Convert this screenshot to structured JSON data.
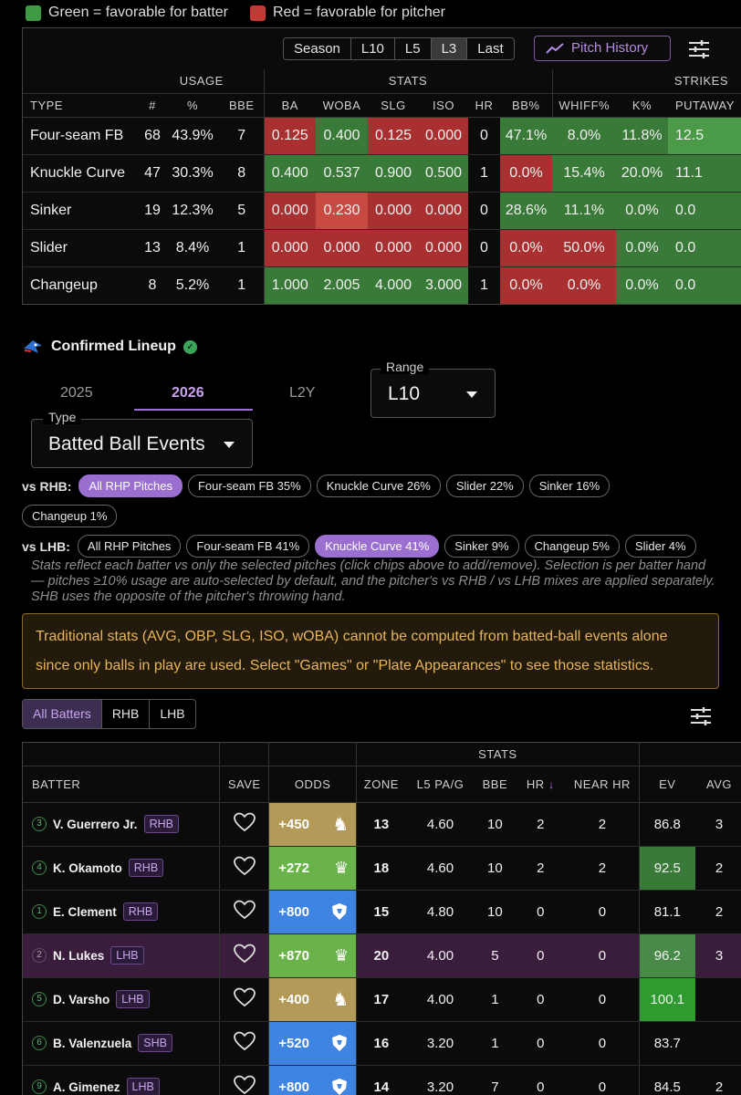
{
  "legend": {
    "green": {
      "label": "Green = favorable for batter",
      "color": "#3f9a45"
    },
    "red": {
      "label": "Red = favorable for pitcher",
      "color": "#c23a36"
    }
  },
  "pitch_panel": {
    "ranges": [
      "Season",
      "L10",
      "L5",
      "L3",
      "Last"
    ],
    "active_range": "L3",
    "pitch_history_label": "Pitch History",
    "group_headers": {
      "usage": "USAGE",
      "stats": "STATS",
      "strikes": "STRIKES"
    },
    "columns": [
      "TYPE",
      "#",
      "%",
      "BBE",
      "BA",
      "WOBA",
      "SLG",
      "ISO",
      "HR",
      "BB%",
      "WHIFF%",
      "K%",
      "PUTAWAY"
    ],
    "rows": [
      {
        "type": "Four-seam FB",
        "count": "68",
        "pct": "43.9%",
        "bbe": "7",
        "ba": "0.125",
        "woba": "0.400",
        "slg": "0.125",
        "iso": "0.000",
        "hr": "0",
        "bb": "47.1%",
        "whiff": "8.0%",
        "k": "11.8%",
        "putaway": "12.5"
      },
      {
        "type": "Knuckle Curve",
        "count": "47",
        "pct": "30.3%",
        "bbe": "8",
        "ba": "0.400",
        "woba": "0.537",
        "slg": "0.900",
        "iso": "0.500",
        "hr": "1",
        "bb": "0.0%",
        "whiff": "15.4%",
        "k": "20.0%",
        "putaway": "11.1"
      },
      {
        "type": "Sinker",
        "count": "19",
        "pct": "12.3%",
        "bbe": "5",
        "ba": "0.000",
        "woba": "0.230",
        "slg": "0.000",
        "iso": "0.000",
        "hr": "0",
        "bb": "28.6%",
        "whiff": "11.1%",
        "k": "0.0%",
        "putaway": "0.0"
      },
      {
        "type": "Slider",
        "count": "13",
        "pct": "8.4%",
        "bbe": "1",
        "ba": "0.000",
        "woba": "0.000",
        "slg": "0.000",
        "iso": "0.000",
        "hr": "0",
        "bb": "0.0%",
        "whiff": "50.0%",
        "k": "0.0%",
        "putaway": "0.0"
      },
      {
        "type": "Changeup",
        "count": "8",
        "pct": "5.2%",
        "bbe": "1",
        "ba": "1.000",
        "woba": "2.005",
        "slg": "4.000",
        "iso": "3.000",
        "hr": "1",
        "bb": "0.0%",
        "whiff": "0.0%",
        "k": "0.0%",
        "putaway": "0.0"
      }
    ]
  },
  "lineup": {
    "title": "Confirmed Lineup",
    "years": [
      "2025",
      "2026",
      "L2Y"
    ],
    "active_year": "2026",
    "range": {
      "label": "Range",
      "value": "L10"
    },
    "type": {
      "label": "Type",
      "value": "Batted Ball Events"
    },
    "vs_rhb": {
      "label": "vs RHB:",
      "chips": [
        "All RHP Pitches",
        "Four-seam FB 35%",
        "Knuckle Curve 26%",
        "Slider 22%",
        "Sinker 16%",
        "Changeup 1%"
      ]
    },
    "vs_lhb": {
      "label": "vs LHB:",
      "chips": [
        "All RHP Pitches",
        "Four-seam FB 41%",
        "Knuckle Curve 41%",
        "Sinker 9%",
        "Changeup 5%",
        "Slider 4%"
      ]
    },
    "note": "Stats reflect each batter vs only the selected pitches (click chips above to add/remove). Selection is per batter hand — pitches ≥10% usage are auto-selected by default, and the pitcher's vs RHB / vs LHB mixes are applied separately. SHB uses the opposite of the pitcher's throwing hand.",
    "warning": "Traditional stats (AVG, OBP, SLG, ISO, wOBA) cannot be computed from batted-ball events alone since only balls in play are used. Select \"Games\" or \"Plate Appearances\" to see those statistics.",
    "batter_filters": [
      "All Batters",
      "RHB",
      "LHB"
    ]
  },
  "batters_table": {
    "stats_header": "STATS",
    "columns": [
      "BATTER",
      "SAVE",
      "ODDS",
      "ZONE",
      "L5 PA/G",
      "BBE",
      "HR",
      "NEAR HR",
      "EV",
      "AVG"
    ],
    "rows": [
      {
        "order": "3",
        "name": "V. Guerrero Jr.",
        "hand": "RHB",
        "odds": "+450",
        "book": "gold",
        "zone": "13",
        "pa": "4.60",
        "bbe": "10",
        "hr": "2",
        "near": "2",
        "ev": "86.8",
        "avg": "3"
      },
      {
        "order": "4",
        "name": "K. Okamoto",
        "hand": "RHB",
        "odds": "+272",
        "book": "green",
        "zone": "18",
        "pa": "4.60",
        "bbe": "10",
        "hr": "2",
        "near": "2",
        "ev": "92.5",
        "avg": "2"
      },
      {
        "order": "1",
        "name": "E. Clement",
        "hand": "RHB",
        "odds": "+800",
        "book": "blue",
        "zone": "15",
        "pa": "4.80",
        "bbe": "10",
        "hr": "0",
        "near": "0",
        "ev": "81.1",
        "avg": "2"
      },
      {
        "order": "2",
        "name": "N. Lukes",
        "hand": "LHB",
        "odds": "+870",
        "book": "green",
        "zone": "20",
        "pa": "4.00",
        "bbe": "5",
        "hr": "0",
        "near": "0",
        "ev": "96.2",
        "avg": "3"
      },
      {
        "order": "5",
        "name": "D. Varsho",
        "hand": "LHB",
        "odds": "+400",
        "book": "gold",
        "zone": "17",
        "pa": "4.00",
        "bbe": "1",
        "hr": "0",
        "near": "0",
        "ev": "100.1",
        "avg": ""
      },
      {
        "order": "6",
        "name": "B. Valenzuela",
        "hand": "SHB",
        "odds": "+520",
        "book": "blue",
        "zone": "16",
        "pa": "3.20",
        "bbe": "1",
        "hr": "0",
        "near": "0",
        "ev": "83.7",
        "avg": ""
      },
      {
        "order": "9",
        "name": "A. Gimenez",
        "hand": "LHB",
        "odds": "+800",
        "book": "blue",
        "zone": "14",
        "pa": "3.20",
        "bbe": "7",
        "hr": "0",
        "near": "0",
        "ev": "84.5",
        "avg": "2"
      }
    ]
  }
}
